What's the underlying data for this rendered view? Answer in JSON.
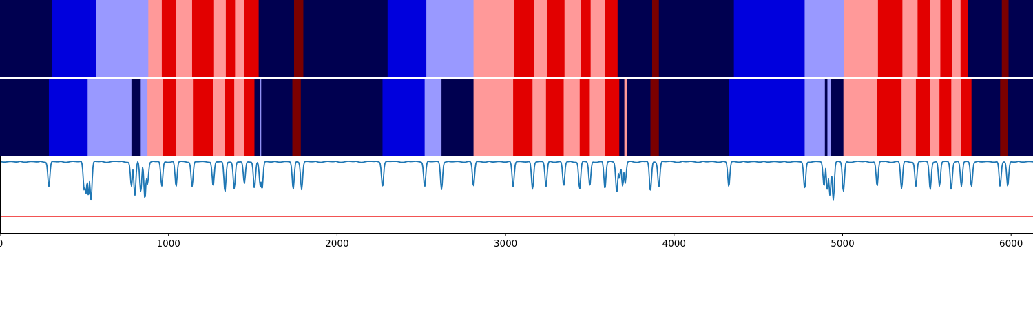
{
  "chart_data": {
    "type": "heatmap",
    "xlim": [
      0,
      6130
    ],
    "x_ticks": [
      {
        "value": 0,
        "label": "0"
      },
      {
        "value": 1000,
        "label": "1000"
      },
      {
        "value": 2000,
        "label": "2000"
      },
      {
        "value": 3000,
        "label": "3000"
      },
      {
        "value": 4000,
        "label": "4000"
      },
      {
        "value": 5000,
        "label": "5000"
      },
      {
        "value": 6000,
        "label": "6000"
      }
    ],
    "state_colors": {
      "dark_navy": "#000050",
      "blue": "#0000dd",
      "light_blue": "#9999ff",
      "light_red": "#ff9999",
      "red": "#e20000",
      "dark_red": "#7b0000"
    },
    "segmentation_rows": [
      {
        "segments": [
          {
            "start": 0,
            "end": 310,
            "state": "dark_navy"
          },
          {
            "start": 310,
            "end": 570,
            "state": "blue"
          },
          {
            "start": 570,
            "end": 880,
            "state": "light_blue"
          },
          {
            "start": 880,
            "end": 960,
            "state": "light_red"
          },
          {
            "start": 960,
            "end": 1045,
            "state": "red"
          },
          {
            "start": 1045,
            "end": 1140,
            "state": "light_red"
          },
          {
            "start": 1140,
            "end": 1270,
            "state": "red"
          },
          {
            "start": 1270,
            "end": 1340,
            "state": "light_red"
          },
          {
            "start": 1340,
            "end": 1395,
            "state": "red"
          },
          {
            "start": 1395,
            "end": 1450,
            "state": "light_red"
          },
          {
            "start": 1450,
            "end": 1535,
            "state": "red"
          },
          {
            "start": 1535,
            "end": 1745,
            "state": "dark_navy"
          },
          {
            "start": 1745,
            "end": 1800,
            "state": "dark_red"
          },
          {
            "start": 1800,
            "end": 2300,
            "state": "dark_navy"
          },
          {
            "start": 2300,
            "end": 2530,
            "state": "blue"
          },
          {
            "start": 2530,
            "end": 2810,
            "state": "light_blue"
          },
          {
            "start": 2810,
            "end": 3050,
            "state": "light_red"
          },
          {
            "start": 3050,
            "end": 3170,
            "state": "red"
          },
          {
            "start": 3170,
            "end": 3245,
            "state": "light_red"
          },
          {
            "start": 3245,
            "end": 3350,
            "state": "red"
          },
          {
            "start": 3350,
            "end": 3445,
            "state": "light_red"
          },
          {
            "start": 3445,
            "end": 3505,
            "state": "red"
          },
          {
            "start": 3505,
            "end": 3590,
            "state": "light_red"
          },
          {
            "start": 3590,
            "end": 3665,
            "state": "red"
          },
          {
            "start": 3665,
            "end": 3870,
            "state": "dark_navy"
          },
          {
            "start": 3870,
            "end": 3910,
            "state": "dark_red"
          },
          {
            "start": 3910,
            "end": 4355,
            "state": "dark_navy"
          },
          {
            "start": 4355,
            "end": 4775,
            "state": "blue"
          },
          {
            "start": 4775,
            "end": 5010,
            "state": "light_blue"
          },
          {
            "start": 5010,
            "end": 5210,
            "state": "light_red"
          },
          {
            "start": 5210,
            "end": 5355,
            "state": "red"
          },
          {
            "start": 5355,
            "end": 5445,
            "state": "light_red"
          },
          {
            "start": 5445,
            "end": 5520,
            "state": "red"
          },
          {
            "start": 5520,
            "end": 5580,
            "state": "light_red"
          },
          {
            "start": 5580,
            "end": 5650,
            "state": "red"
          },
          {
            "start": 5650,
            "end": 5700,
            "state": "light_red"
          },
          {
            "start": 5700,
            "end": 5745,
            "state": "red"
          },
          {
            "start": 5745,
            "end": 5945,
            "state": "dark_navy"
          },
          {
            "start": 5945,
            "end": 5985,
            "state": "dark_red"
          },
          {
            "start": 5985,
            "end": 6130,
            "state": "dark_navy"
          }
        ]
      },
      {
        "segments": [
          {
            "start": 0,
            "end": 290,
            "state": "dark_navy"
          },
          {
            "start": 290,
            "end": 520,
            "state": "blue"
          },
          {
            "start": 520,
            "end": 780,
            "state": "light_blue"
          },
          {
            "start": 780,
            "end": 835,
            "state": "dark_navy"
          },
          {
            "start": 835,
            "end": 875,
            "state": "light_blue"
          },
          {
            "start": 875,
            "end": 965,
            "state": "light_red"
          },
          {
            "start": 965,
            "end": 1045,
            "state": "red"
          },
          {
            "start": 1045,
            "end": 1145,
            "state": "light_red"
          },
          {
            "start": 1145,
            "end": 1265,
            "state": "red"
          },
          {
            "start": 1265,
            "end": 1335,
            "state": "light_red"
          },
          {
            "start": 1335,
            "end": 1390,
            "state": "red"
          },
          {
            "start": 1390,
            "end": 1450,
            "state": "light_red"
          },
          {
            "start": 1450,
            "end": 1510,
            "state": "red"
          },
          {
            "start": 1510,
            "end": 1545,
            "state": "dark_navy"
          },
          {
            "start": 1545,
            "end": 1550,
            "state": "light_blue"
          },
          {
            "start": 1550,
            "end": 1735,
            "state": "dark_navy"
          },
          {
            "start": 1735,
            "end": 1785,
            "state": "dark_red"
          },
          {
            "start": 1785,
            "end": 2270,
            "state": "dark_navy"
          },
          {
            "start": 2270,
            "end": 2520,
            "state": "blue"
          },
          {
            "start": 2520,
            "end": 2620,
            "state": "light_blue"
          },
          {
            "start": 2620,
            "end": 2810,
            "state": "dark_navy"
          },
          {
            "start": 2810,
            "end": 3045,
            "state": "light_red"
          },
          {
            "start": 3045,
            "end": 3160,
            "state": "red"
          },
          {
            "start": 3160,
            "end": 3240,
            "state": "light_red"
          },
          {
            "start": 3240,
            "end": 3345,
            "state": "red"
          },
          {
            "start": 3345,
            "end": 3440,
            "state": "light_red"
          },
          {
            "start": 3440,
            "end": 3500,
            "state": "red"
          },
          {
            "start": 3500,
            "end": 3590,
            "state": "light_red"
          },
          {
            "start": 3590,
            "end": 3675,
            "state": "red"
          },
          {
            "start": 3675,
            "end": 3705,
            "state": "dark_navy"
          },
          {
            "start": 3705,
            "end": 3720,
            "state": "light_red"
          },
          {
            "start": 3720,
            "end": 3860,
            "state": "dark_navy"
          },
          {
            "start": 3860,
            "end": 3910,
            "state": "dark_red"
          },
          {
            "start": 3910,
            "end": 4325,
            "state": "dark_navy"
          },
          {
            "start": 4325,
            "end": 4775,
            "state": "blue"
          },
          {
            "start": 4775,
            "end": 4895,
            "state": "light_blue"
          },
          {
            "start": 4895,
            "end": 4910,
            "state": "dark_navy"
          },
          {
            "start": 4910,
            "end": 4930,
            "state": "light_blue"
          },
          {
            "start": 4930,
            "end": 5005,
            "state": "dark_navy"
          },
          {
            "start": 5005,
            "end": 5205,
            "state": "light_red"
          },
          {
            "start": 5205,
            "end": 5350,
            "state": "red"
          },
          {
            "start": 5350,
            "end": 5435,
            "state": "light_red"
          },
          {
            "start": 5435,
            "end": 5520,
            "state": "red"
          },
          {
            "start": 5520,
            "end": 5575,
            "state": "light_red"
          },
          {
            "start": 5575,
            "end": 5645,
            "state": "red"
          },
          {
            "start": 5645,
            "end": 5705,
            "state": "light_red"
          },
          {
            "start": 5705,
            "end": 5765,
            "state": "red"
          },
          {
            "start": 5765,
            "end": 5935,
            "state": "dark_navy"
          },
          {
            "start": 5935,
            "end": 5980,
            "state": "dark_red"
          },
          {
            "start": 5980,
            "end": 6130,
            "state": "dark_navy"
          }
        ]
      }
    ],
    "signal": {
      "color": "#1f77b4",
      "baseline": 1.0,
      "ylim": [
        -0.3,
        1.1
      ],
      "dips": [
        [
          290,
          0.55
        ],
        [
          500,
          0.48
        ],
        [
          510,
          0.43
        ],
        [
          525,
          0.38
        ],
        [
          540,
          0.3
        ],
        [
          780,
          0.55
        ],
        [
          800,
          0.38
        ],
        [
          835,
          0.44
        ],
        [
          860,
          0.33
        ],
        [
          875,
          0.6
        ],
        [
          960,
          0.55
        ],
        [
          1045,
          0.55
        ],
        [
          1140,
          0.55
        ],
        [
          1265,
          0.55
        ],
        [
          1335,
          0.45
        ],
        [
          1390,
          0.5
        ],
        [
          1450,
          0.6
        ],
        [
          1510,
          0.5
        ],
        [
          1545,
          0.55
        ],
        [
          1555,
          0.5
        ],
        [
          1740,
          0.5
        ],
        [
          1790,
          0.5
        ],
        [
          2270,
          0.55
        ],
        [
          2520,
          0.55
        ],
        [
          2620,
          0.5
        ],
        [
          2810,
          0.55
        ],
        [
          3045,
          0.55
        ],
        [
          3160,
          0.5
        ],
        [
          3240,
          0.55
        ],
        [
          3345,
          0.55
        ],
        [
          3440,
          0.5
        ],
        [
          3500,
          0.55
        ],
        [
          3590,
          0.5
        ],
        [
          3660,
          0.45
        ],
        [
          3675,
          0.7
        ],
        [
          3695,
          0.55
        ],
        [
          3710,
          0.6
        ],
        [
          3860,
          0.45
        ],
        [
          3910,
          0.55
        ],
        [
          4325,
          0.55
        ],
        [
          4775,
          0.5
        ],
        [
          4890,
          0.55
        ],
        [
          4910,
          0.48
        ],
        [
          4925,
          0.4
        ],
        [
          4945,
          0.3
        ],
        [
          5005,
          0.45
        ],
        [
          5205,
          0.55
        ],
        [
          5350,
          0.5
        ],
        [
          5435,
          0.55
        ],
        [
          5520,
          0.5
        ],
        [
          5575,
          0.55
        ],
        [
          5645,
          0.5
        ],
        [
          5705,
          0.55
        ],
        [
          5765,
          0.55
        ],
        [
          5935,
          0.55
        ],
        [
          5980,
          0.55
        ]
      ]
    },
    "threshold": {
      "value": 0.0,
      "color": "#ee1c1c"
    }
  }
}
